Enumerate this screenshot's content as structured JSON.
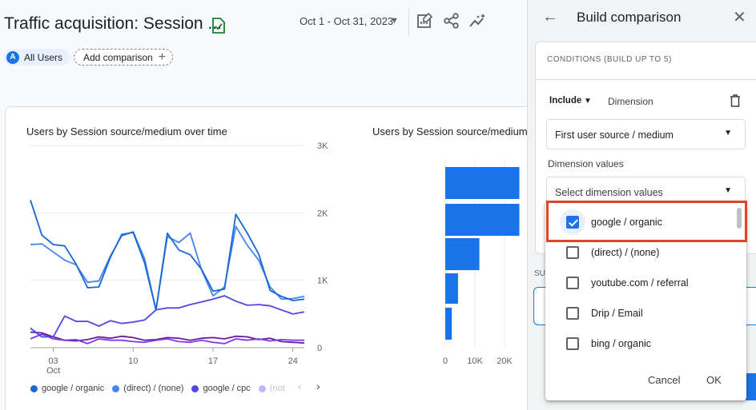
{
  "header": {
    "title": "Traffic acquisition: Session ...",
    "date_range": "Oct 1 - Oct 31, 2023"
  },
  "comparison_chips": {
    "all_users_avatar": "A",
    "all_users_label": "All Users",
    "add_comparison_label": "Add comparison"
  },
  "line_chart_title": "Users by Session source/medium over time",
  "bar_chart_title": "Users by Session source/medium",
  "chart_data": [
    {
      "type": "line",
      "title": "Users by Session source/medium over time",
      "x_ticks": [
        {
          "day": 3,
          "label": "03",
          "sublabel": "Oct"
        },
        {
          "day": 10,
          "label": "10"
        },
        {
          "day": 17,
          "label": "17"
        },
        {
          "day": 24,
          "label": "24"
        }
      ],
      "x": [
        1,
        2,
        3,
        4,
        5,
        6,
        7,
        8,
        9,
        10,
        11,
        12,
        13,
        14,
        15,
        16,
        17,
        18,
        19,
        20,
        21,
        22,
        23,
        24,
        25
      ],
      "y_ticks": [
        {
          "value": 0,
          "label": "0"
        },
        {
          "value": 1000,
          "label": "1K"
        },
        {
          "value": 2000,
          "label": "2K"
        },
        {
          "value": 3000,
          "label": "3K"
        }
      ],
      "ylim": [
        0,
        2800
      ],
      "grid": true,
      "series": [
        {
          "name": "google / organic",
          "color": "#1967d2",
          "values": [
            2190,
            1670,
            1530,
            1510,
            1240,
            890,
            900,
            1340,
            1680,
            1710,
            1260,
            560,
            1700,
            1450,
            1380,
            1160,
            840,
            870,
            1980,
            1700,
            1390,
            850,
            760,
            700,
            720
          ]
        },
        {
          "name": "(direct) / (none)",
          "color": "#4285f4",
          "values": [
            1530,
            1540,
            1420,
            1300,
            1230,
            970,
            990,
            1360,
            1660,
            1720,
            1320,
            560,
            1650,
            1560,
            1700,
            1150,
            770,
            900,
            1800,
            1520,
            1300,
            900,
            720,
            730,
            760
          ]
        },
        {
          "name": "google / cpc",
          "color": "#4f46e5",
          "values": [
            290,
            160,
            160,
            470,
            390,
            390,
            320,
            400,
            360,
            380,
            410,
            560,
            590,
            590,
            640,
            680,
            720,
            770,
            690,
            630,
            640,
            620,
            560,
            500,
            530
          ]
        },
        {
          "name": "(not set)",
          "color": "#7c3aed",
          "values": [
            130,
            200,
            130,
            110,
            120,
            60,
            130,
            110,
            110,
            90,
            80,
            110,
            130,
            90,
            80,
            110,
            80,
            60,
            130,
            110,
            130,
            100,
            120,
            110,
            110
          ]
        },
        {
          "name": "",
          "color": "#6a1b9a",
          "values": [
            230,
            220,
            160,
            110,
            100,
            120,
            160,
            140,
            170,
            150,
            110,
            120,
            150,
            140,
            110,
            140,
            150,
            130,
            170,
            160,
            120,
            140,
            90,
            80,
            70
          ]
        }
      ]
    },
    {
      "type": "bar",
      "orientation": "horizontal",
      "title": "Users by Session source/medium",
      "x_ticks": [
        {
          "value": 0,
          "label": "0"
        },
        {
          "value": 10000,
          "label": "10K"
        },
        {
          "value": 20000,
          "label": "20K"
        }
      ],
      "xlim": [
        0,
        25000
      ],
      "color": "#1a73e8",
      "values": [
        25000,
        25000,
        11500,
        4300,
        2200
      ]
    }
  ],
  "legend": {
    "items": [
      {
        "label": "google / organic",
        "color": "#1967d2"
      },
      {
        "label": "(direct) / (none)",
        "color": "#4285f4"
      },
      {
        "label": "google / cpc",
        "color": "#4f46e5"
      },
      {
        "label": "(not",
        "color": "#c7b3f5"
      }
    ],
    "prev_icon": "chevron-left-icon",
    "next_icon": "chevron-right-icon"
  },
  "panel": {
    "title": "Build comparison",
    "conditions_header": "CONDITIONS (BUILD UP TO 5)",
    "include_label": "Include",
    "dimension_label": "Dimension",
    "dimension_select": "First user source / medium",
    "dimension_values_label": "Dimension values",
    "dimension_values_placeholder": "Select dimension values",
    "sub_label": "SU"
  },
  "dropdown": {
    "options": [
      {
        "label": "google / organic",
        "checked": true
      },
      {
        "label": "(direct) / (none)",
        "checked": false
      },
      {
        "label": "youtube.com / referral",
        "checked": false
      },
      {
        "label": "Drip / Email",
        "checked": false
      },
      {
        "label": "bing / organic",
        "checked": false
      }
    ],
    "cancel_label": "Cancel",
    "ok_label": "OK"
  }
}
